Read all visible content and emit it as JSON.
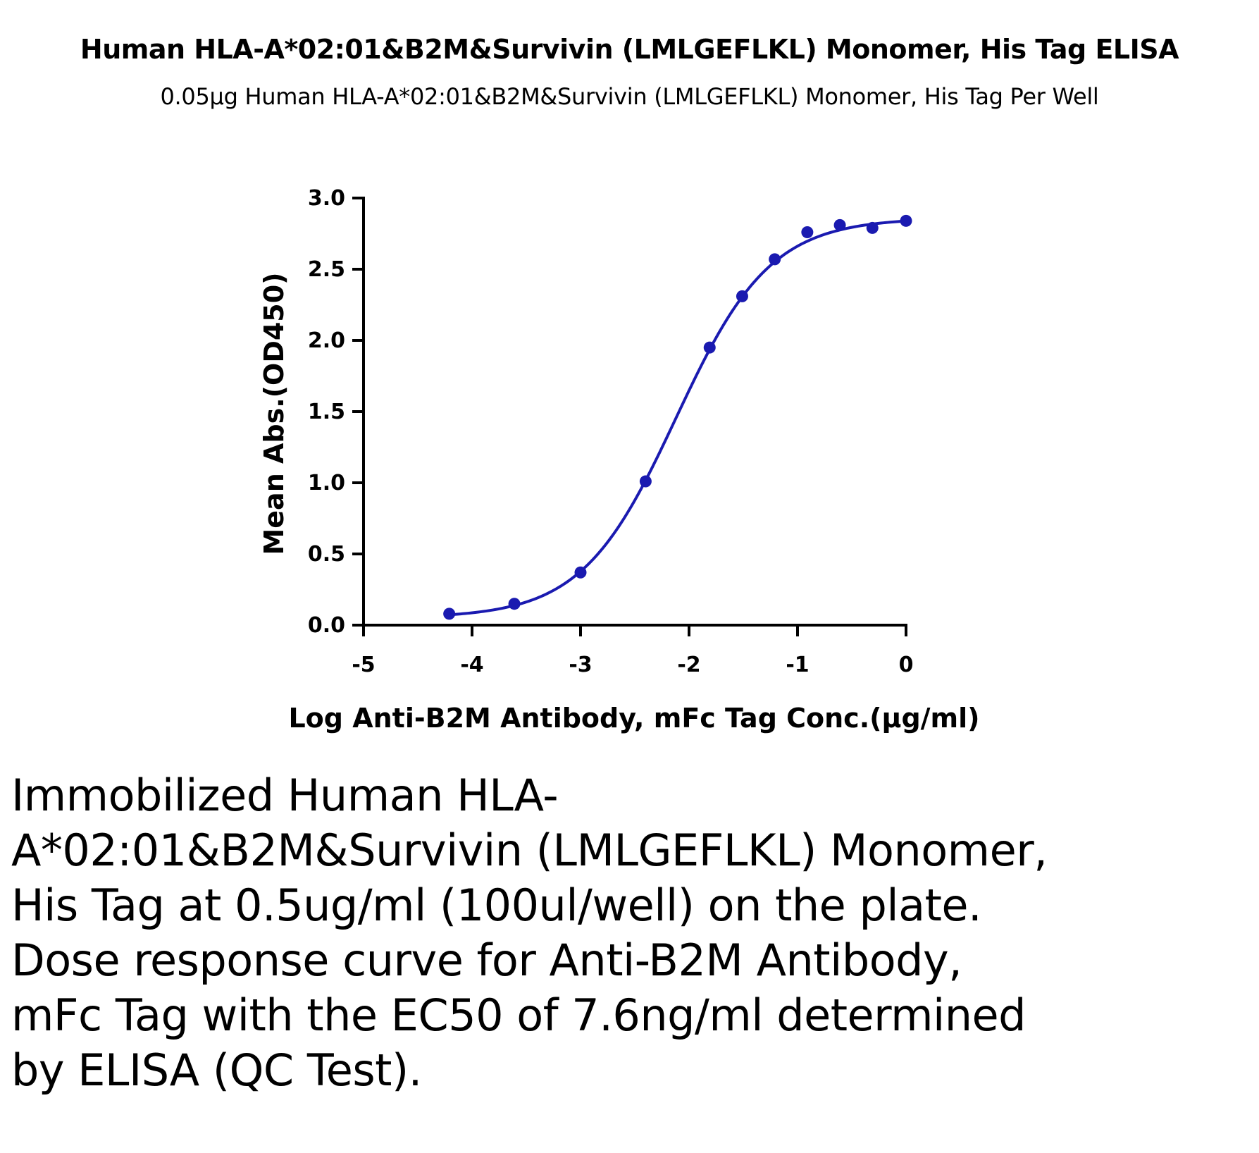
{
  "chart_data": {
    "type": "scatter",
    "title": "Human HLA-A*02:01&B2M&Survivin (LMLGEFLKL) Monomer, His Tag ELISA",
    "subtitle": "0.05μg Human HLA-A*02:01&B2M&Survivin (LMLGEFLKL) Monomer, His Tag Per Well",
    "xlabel": "Log Anti-B2M Antibody, mFc Tag Conc.(μg/ml)",
    "ylabel": "Mean Abs.(OD450)",
    "xlim": [
      -5,
      0
    ],
    "ylim": [
      0,
      3.0
    ],
    "xticks": [
      -5,
      -4,
      -3,
      -2,
      -1,
      0
    ],
    "xtick_labels": [
      "-5",
      "-4",
      "-3",
      "-2",
      "-1",
      "0"
    ],
    "yticks": [
      0,
      0.5,
      1.0,
      1.5,
      2.0,
      2.5,
      3.0
    ],
    "ytick_labels": [
      "0.0",
      "0.5",
      "1.0",
      "1.5",
      "2.0",
      "2.5",
      "3.0"
    ],
    "grid": false,
    "color": "#1a1ab0",
    "series": [
      {
        "x": [
          -4.21,
          -3.61,
          -3.0,
          -2.4,
          -1.81,
          -1.51,
          -1.21,
          -0.91,
          -0.61,
          -0.31,
          0.0
        ],
        "y": [
          0.08,
          0.15,
          0.37,
          1.01,
          1.95,
          2.31,
          2.57,
          2.76,
          2.81,
          2.79,
          2.84
        ],
        "fit": {
          "bottom": 0.05,
          "top": 2.86,
          "log_ec50": -2.12,
          "hill": 1.0
        }
      }
    ]
  },
  "caption": "Immobilized Human HLA-A*02:01&B2M&Survivin (LMLGEFLKL) Monomer, His Tag at 0.5ug/ml (100ul/well) on the plate. Dose response curve for Anti-B2M Antibody, mFc Tag with the EC50 of 7.6ng/ml determined by ELISA (QC Test)."
}
